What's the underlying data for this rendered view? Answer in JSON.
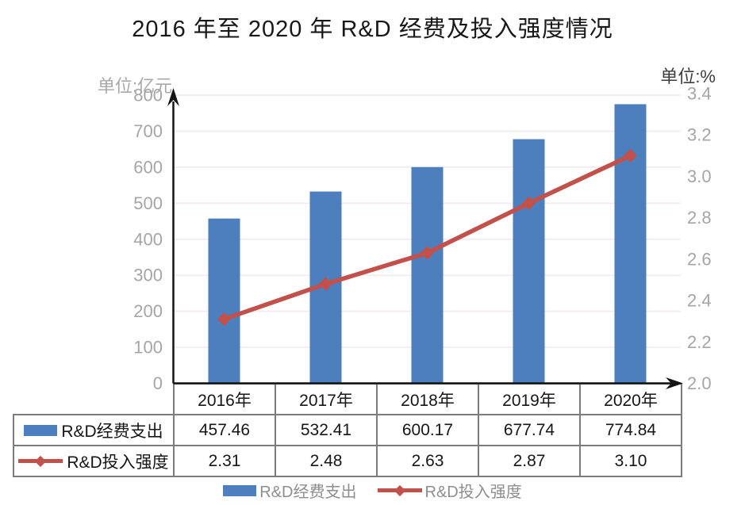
{
  "title": "2016 年至 2020 年 R&D 经费及投入强度情况",
  "chart_data": {
    "type": "combo",
    "categories": [
      "2016年",
      "2017年",
      "2018年",
      "2019年",
      "2020年"
    ],
    "series": [
      {
        "name": "R&D经费支出",
        "type": "bar",
        "axis": "left",
        "color": "#4d7ebd",
        "values": [
          457.46,
          532.41,
          600.17,
          677.74,
          774.84
        ]
      },
      {
        "name": "R&D投入强度",
        "type": "line",
        "marker": "diamond",
        "axis": "right",
        "color": "#c2504b",
        "values": [
          2.31,
          2.48,
          2.63,
          2.87,
          3.1
        ]
      }
    ],
    "left_axis": {
      "unit": "单位:亿元",
      "min": 0,
      "max": 800,
      "step": 100,
      "tick_labels": [
        "800",
        "700",
        "600",
        "500",
        "400",
        "300",
        "200",
        "100",
        "0"
      ]
    },
    "right_axis": {
      "unit": "单位:%",
      "min": 2.0,
      "max": 3.4,
      "step": 0.2,
      "tick_labels": [
        "3.4",
        "3.2",
        "3.0",
        "2.8",
        "2.6",
        "2.4",
        "2.2",
        "2.0"
      ]
    },
    "grid": true,
    "legend_position": "bottom"
  },
  "table": {
    "categories": [
      "2016年",
      "2017年",
      "2018年",
      "2019年",
      "2020年"
    ],
    "rows": [
      {
        "label": "R&D经费支出",
        "values": [
          "457.46",
          "532.41",
          "600.17",
          "677.74",
          "774.84"
        ]
      },
      {
        "label": "R&D投入强度",
        "values": [
          "2.31",
          "2.48",
          "2.63",
          "2.87",
          "3.10"
        ]
      }
    ]
  },
  "legend": {
    "items": [
      {
        "label": "R&D经费支出",
        "swatch": "bar"
      },
      {
        "label": "R&D投入强度",
        "swatch": "line-diamond"
      }
    ]
  }
}
